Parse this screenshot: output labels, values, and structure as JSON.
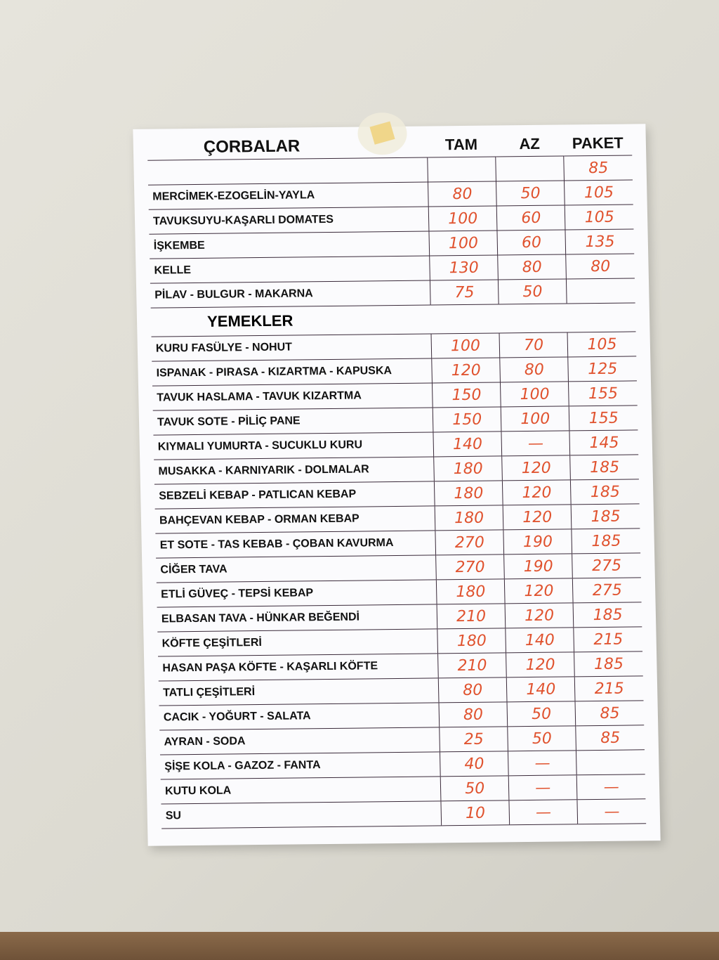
{
  "headers": {
    "section1": "ÇORBALAR",
    "tam": "TAM",
    "az": "AZ",
    "paket": "PAKET",
    "section2": "YEMEKLER"
  },
  "header_paket_value": "85",
  "corbalar": [
    {
      "name": "MERCİMEK-EZOGELİN-YAYLA",
      "tam": "80",
      "az": "50",
      "paket": "105"
    },
    {
      "name": "TAVUKSUYU-KAŞARLI DOMATES",
      "tam": "100",
      "az": "60",
      "paket": "105"
    },
    {
      "name": "İŞKEMBE",
      "tam": "100",
      "az": "60",
      "paket": "135"
    },
    {
      "name": "KELLE",
      "tam": "130",
      "az": "80",
      "paket": "80"
    },
    {
      "name": "PİLAV - BULGUR - MAKARNA",
      "tam": "75",
      "az": "50",
      "paket": ""
    }
  ],
  "yemekler": [
    {
      "name": "KURU FASÜLYE - NOHUT",
      "tam": "100",
      "az": "70",
      "paket": "105"
    },
    {
      "name": "ISPANAK - PIRASA - KIZARTMA - KAPUSKA",
      "tam": "120",
      "az": "80",
      "paket": "125"
    },
    {
      "name": "TAVUK HASLAMA - TAVUK KIZARTMA",
      "tam": "150",
      "az": "100",
      "paket": "155"
    },
    {
      "name": "TAVUK SOTE - PİLİÇ PANE",
      "tam": "150",
      "az": "100",
      "paket": "155"
    },
    {
      "name": "KIYMALI YUMURTA - SUCUKLU KURU",
      "tam": "140",
      "az": "—",
      "paket": "145"
    },
    {
      "name": "MUSAKKA - KARNIYARIK - DOLMALAR",
      "tam": "180",
      "az": "120",
      "paket": "185"
    },
    {
      "name": "SEBZELİ KEBAP - PATLICAN KEBAP",
      "tam": "180",
      "az": "120",
      "paket": "185"
    },
    {
      "name": "BAHÇEVAN KEBAP - ORMAN KEBAP",
      "tam": "180",
      "az": "120",
      "paket": "185"
    },
    {
      "name": "ET SOTE - TAS KEBAB - ÇOBAN KAVURMA",
      "tam": "270",
      "az": "190",
      "paket": "185"
    },
    {
      "name": "CİĞER TAVA",
      "tam": "270",
      "az": "190",
      "paket": "275"
    },
    {
      "name": "ETLİ GÜVEÇ - TEPSİ KEBAP",
      "tam": "180",
      "az": "120",
      "paket": "275"
    },
    {
      "name": "ELBASAN TAVA - HÜNKAR BEĞENDİ",
      "tam": "210",
      "az": "120",
      "paket": "185"
    },
    {
      "name": "KÖFTE ÇEŞİTLERİ",
      "tam": "180",
      "az": "140",
      "paket": "215"
    },
    {
      "name": "HASAN PAŞA KÖFTE - KAŞARLI KÖFTE",
      "tam": "210",
      "az": "120",
      "paket": "185"
    },
    {
      "name": "TATLI ÇEŞİTLERİ",
      "tam": "80",
      "az": "140",
      "paket": "215"
    },
    {
      "name": "CACIK - YOĞURT - SALATA",
      "tam": "80",
      "az": "50",
      "paket": "85"
    },
    {
      "name": "AYRAN - SODA",
      "tam": "25",
      "az": "50",
      "paket": "85"
    },
    {
      "name": "ŞİŞE KOLA - GAZOZ - FANTA",
      "tam": "40",
      "az": "—",
      "paket": ""
    },
    {
      "name": "KUTU KOLA",
      "tam": "50",
      "az": "—",
      "paket": "—"
    },
    {
      "name": "SU",
      "tam": "10",
      "az": "—",
      "paket": "—"
    }
  ]
}
